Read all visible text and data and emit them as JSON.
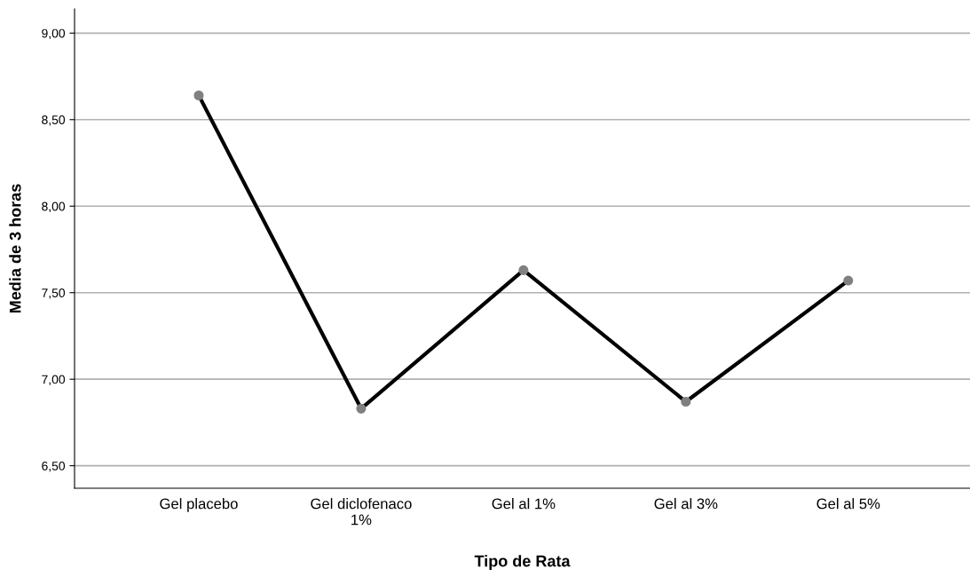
{
  "chart_data": {
    "type": "line",
    "xlabel": "Tipo de Rata",
    "ylabel": "Media de 3 horas",
    "categories": [
      "Gel placebo",
      "Gel diclofenaco\n1%",
      "Gel al 1%",
      "Gel al 3%",
      "Gel al 5%"
    ],
    "series": [
      {
        "color": "#000000",
        "colors": [
          "#808080",
          "#808080",
          "#808080",
          "#808080",
          "#808080"
        ],
        "values": [
          8.64,
          6.83,
          7.63,
          6.87,
          7.57
        ]
      }
    ],
    "ylim": [
      6.37,
      9.14
    ],
    "yticks": [
      {
        "value": 6.5,
        "label": "6,50"
      },
      {
        "value": 7.0,
        "label": "7,00"
      },
      {
        "value": 7.5,
        "label": "7,50"
      },
      {
        "value": 8.0,
        "label": "8,00"
      },
      {
        "value": 8.5,
        "label": "8,50"
      },
      {
        "value": 9.0,
        "label": "9,00"
      }
    ],
    "grid": "y",
    "marker": "circle",
    "line_style": "solid"
  }
}
